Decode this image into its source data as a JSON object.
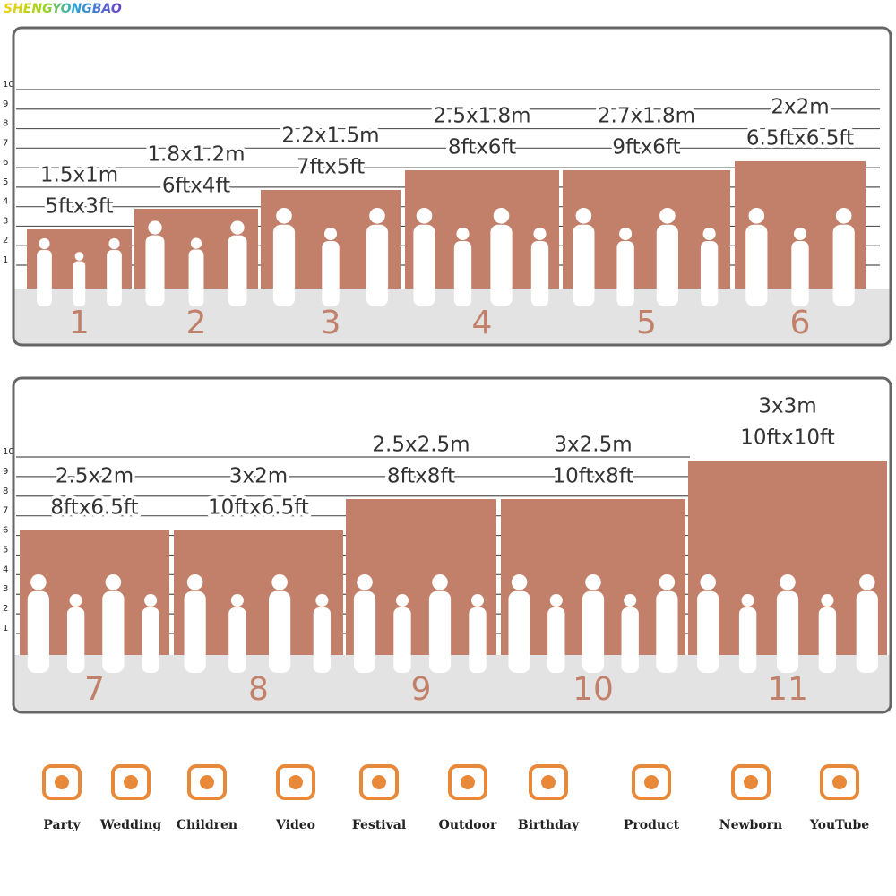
{
  "watermark": "SHENGYONGBAO",
  "scale": [
    1,
    2,
    3,
    4,
    5,
    6,
    7,
    8,
    9,
    10
  ],
  "panels": [
    {
      "sizes": [
        {
          "number": "1",
          "metric": "1.5x1m",
          "imperial": "5ftx3ft"
        },
        {
          "number": "2",
          "metric": "1.8x1.2m",
          "imperial": "6ftx4ft"
        },
        {
          "number": "3",
          "metric": "2.2x1.5m",
          "imperial": "7ftx5ft"
        },
        {
          "number": "4",
          "metric": "2.5x1.8m",
          "imperial": "8ftx6ft"
        },
        {
          "number": "5",
          "metric": "2.7x1.8m",
          "imperial": "9ftx6ft"
        },
        {
          "number": "6",
          "metric": "2x2m",
          "imperial": "6.5ftx6.5ft"
        }
      ]
    },
    {
      "sizes": [
        {
          "number": "7",
          "metric": "2.5x2m",
          "imperial": "8ftx6.5ft"
        },
        {
          "number": "8",
          "metric": "3x2m",
          "imperial": "10ftx6.5ft"
        },
        {
          "number": "9",
          "metric": "2.5x2.5m",
          "imperial": "8ftx8ft"
        },
        {
          "number": "10",
          "metric": "3x2.5m",
          "imperial": "10ftx8ft"
        },
        {
          "number": "11",
          "metric": "3x3m",
          "imperial": "10ftx10ft"
        }
      ]
    }
  ],
  "uses": [
    "Party",
    "Wedding",
    "Children",
    "Video",
    "Festival",
    "Outdoor",
    "Birthday",
    "Product",
    "Newborn",
    "YouTube"
  ]
}
